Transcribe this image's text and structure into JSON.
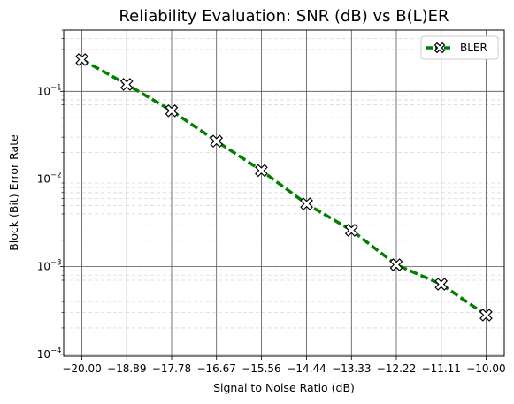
{
  "chart_data": {
    "type": "line",
    "title": "Reliability Evaluation: SNR (dB) vs B(L)ER",
    "xlabel": "Signal to Noise Ratio (dB)",
    "ylabel": "Block (Bit) Error Rate",
    "yscale": "log",
    "xlim": [
      -20.45,
      -9.55
    ],
    "ylim": [
      9.5e-05,
      0.5
    ],
    "grid": true,
    "legend_position": "top-right",
    "x_ticks": [
      -20.0,
      -18.89,
      -17.78,
      -16.67,
      -15.56,
      -14.44,
      -13.33,
      -12.22,
      -11.11,
      -10.0
    ],
    "x_tick_labels": [
      "−20.00",
      "−18.89",
      "−17.78",
      "−16.67",
      "−15.56",
      "−14.44",
      "−13.33",
      "−12.22",
      "−11.11",
      "−10.00"
    ],
    "y_ticks": [
      {
        "value": 0.0001,
        "base": "10",
        "exp": "−4"
      },
      {
        "value": 0.001,
        "base": "10",
        "exp": "−3"
      },
      {
        "value": 0.01,
        "base": "10",
        "exp": "−2"
      },
      {
        "value": 0.1,
        "base": "10",
        "exp": "−1"
      }
    ],
    "x": [
      -20.0,
      -18.89,
      -17.78,
      -16.67,
      -15.56,
      -14.44,
      -13.33,
      -12.22,
      -11.11,
      -10.0
    ],
    "series": [
      {
        "name": "BLER",
        "color": "#008000",
        "marker": "x-filled",
        "values": [
          0.23,
          0.12,
          0.06,
          0.027,
          0.0125,
          0.0052,
          0.0026,
          0.00105,
          0.00063,
          0.00028
        ]
      }
    ]
  }
}
